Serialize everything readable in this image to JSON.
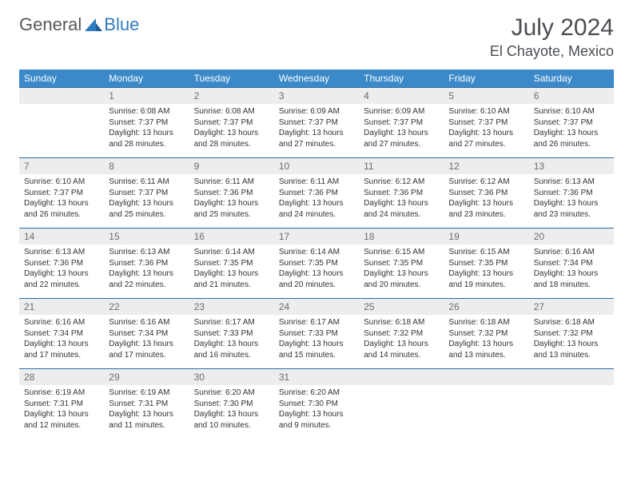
{
  "logo": {
    "word1": "General",
    "word2": "Blue"
  },
  "heading": {
    "month": "July 2024",
    "location": "El Chayote, Mexico"
  },
  "colors": {
    "header_bg": "#3b89c9",
    "header_text": "#ffffff",
    "daynum_bg": "#ededed",
    "daynum_text": "#6a6d71",
    "row_border": "#2f6ea3",
    "body_text": "#333333",
    "title_text": "#4a4e53",
    "logo_gray": "#55585b",
    "logo_blue": "#2f7bbf"
  },
  "dayNames": [
    "Sunday",
    "Monday",
    "Tuesday",
    "Wednesday",
    "Thursday",
    "Friday",
    "Saturday"
  ],
  "weeks": [
    [
      null,
      {
        "n": 1,
        "sr": "6:08 AM",
        "ss": "7:37 PM",
        "dl": "13 hours and 28 minutes."
      },
      {
        "n": 2,
        "sr": "6:08 AM",
        "ss": "7:37 PM",
        "dl": "13 hours and 28 minutes."
      },
      {
        "n": 3,
        "sr": "6:09 AM",
        "ss": "7:37 PM",
        "dl": "13 hours and 27 minutes."
      },
      {
        "n": 4,
        "sr": "6:09 AM",
        "ss": "7:37 PM",
        "dl": "13 hours and 27 minutes."
      },
      {
        "n": 5,
        "sr": "6:10 AM",
        "ss": "7:37 PM",
        "dl": "13 hours and 27 minutes."
      },
      {
        "n": 6,
        "sr": "6:10 AM",
        "ss": "7:37 PM",
        "dl": "13 hours and 26 minutes."
      }
    ],
    [
      {
        "n": 7,
        "sr": "6:10 AM",
        "ss": "7:37 PM",
        "dl": "13 hours and 26 minutes."
      },
      {
        "n": 8,
        "sr": "6:11 AM",
        "ss": "7:37 PM",
        "dl": "13 hours and 25 minutes."
      },
      {
        "n": 9,
        "sr": "6:11 AM",
        "ss": "7:36 PM",
        "dl": "13 hours and 25 minutes."
      },
      {
        "n": 10,
        "sr": "6:11 AM",
        "ss": "7:36 PM",
        "dl": "13 hours and 24 minutes."
      },
      {
        "n": 11,
        "sr": "6:12 AM",
        "ss": "7:36 PM",
        "dl": "13 hours and 24 minutes."
      },
      {
        "n": 12,
        "sr": "6:12 AM",
        "ss": "7:36 PM",
        "dl": "13 hours and 23 minutes."
      },
      {
        "n": 13,
        "sr": "6:13 AM",
        "ss": "7:36 PM",
        "dl": "13 hours and 23 minutes."
      }
    ],
    [
      {
        "n": 14,
        "sr": "6:13 AM",
        "ss": "7:36 PM",
        "dl": "13 hours and 22 minutes."
      },
      {
        "n": 15,
        "sr": "6:13 AM",
        "ss": "7:36 PM",
        "dl": "13 hours and 22 minutes."
      },
      {
        "n": 16,
        "sr": "6:14 AM",
        "ss": "7:35 PM",
        "dl": "13 hours and 21 minutes."
      },
      {
        "n": 17,
        "sr": "6:14 AM",
        "ss": "7:35 PM",
        "dl": "13 hours and 20 minutes."
      },
      {
        "n": 18,
        "sr": "6:15 AM",
        "ss": "7:35 PM",
        "dl": "13 hours and 20 minutes."
      },
      {
        "n": 19,
        "sr": "6:15 AM",
        "ss": "7:35 PM",
        "dl": "13 hours and 19 minutes."
      },
      {
        "n": 20,
        "sr": "6:16 AM",
        "ss": "7:34 PM",
        "dl": "13 hours and 18 minutes."
      }
    ],
    [
      {
        "n": 21,
        "sr": "6:16 AM",
        "ss": "7:34 PM",
        "dl": "13 hours and 17 minutes."
      },
      {
        "n": 22,
        "sr": "6:16 AM",
        "ss": "7:34 PM",
        "dl": "13 hours and 17 minutes."
      },
      {
        "n": 23,
        "sr": "6:17 AM",
        "ss": "7:33 PM",
        "dl": "13 hours and 16 minutes."
      },
      {
        "n": 24,
        "sr": "6:17 AM",
        "ss": "7:33 PM",
        "dl": "13 hours and 15 minutes."
      },
      {
        "n": 25,
        "sr": "6:18 AM",
        "ss": "7:32 PM",
        "dl": "13 hours and 14 minutes."
      },
      {
        "n": 26,
        "sr": "6:18 AM",
        "ss": "7:32 PM",
        "dl": "13 hours and 13 minutes."
      },
      {
        "n": 27,
        "sr": "6:18 AM",
        "ss": "7:32 PM",
        "dl": "13 hours and 13 minutes."
      }
    ],
    [
      {
        "n": 28,
        "sr": "6:19 AM",
        "ss": "7:31 PM",
        "dl": "13 hours and 12 minutes."
      },
      {
        "n": 29,
        "sr": "6:19 AM",
        "ss": "7:31 PM",
        "dl": "13 hours and 11 minutes."
      },
      {
        "n": 30,
        "sr": "6:20 AM",
        "ss": "7:30 PM",
        "dl": "13 hours and 10 minutes."
      },
      {
        "n": 31,
        "sr": "6:20 AM",
        "ss": "7:30 PM",
        "dl": "13 hours and 9 minutes."
      },
      null,
      null,
      null
    ]
  ],
  "labels": {
    "sunrise": "Sunrise:",
    "sunset": "Sunset:",
    "daylight": "Daylight:"
  }
}
